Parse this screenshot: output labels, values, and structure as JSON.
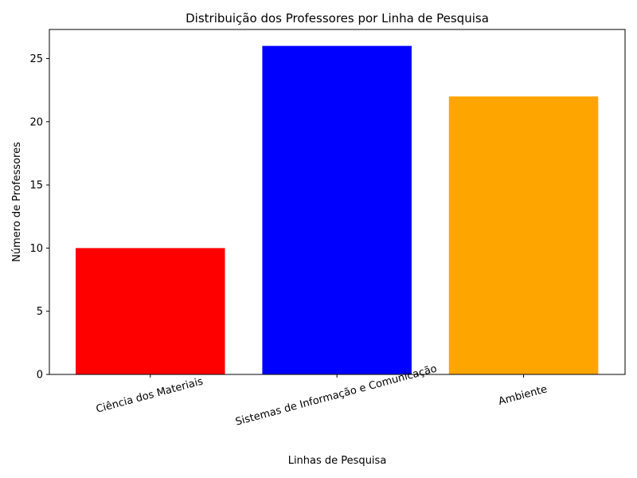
{
  "chart_data": {
    "type": "bar",
    "title": "Distribuição dos Professores por Linha de Pesquisa",
    "xlabel": "Linhas de Pesquisa",
    "ylabel": "Número de Professores",
    "categories": [
      "Ciência dos Materiais",
      "Sistemas de Informação e Comunicação",
      "Ambiente"
    ],
    "values": [
      10,
      26,
      22
    ],
    "colors": [
      "#ff0000",
      "#0000ff",
      "#ffa500"
    ],
    "ylim": [
      0,
      27.3
    ],
    "yticks": [
      0,
      5,
      10,
      15,
      20,
      25
    ],
    "grid": false,
    "legend": "none"
  }
}
